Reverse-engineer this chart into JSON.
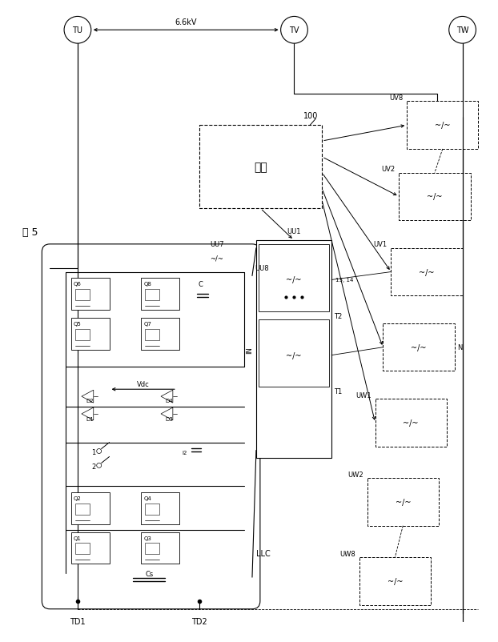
{
  "bg_color": "#ffffff",
  "line_color": "#000000",
  "fig_width": 6.22,
  "fig_height": 8.03,
  "dpi": 100,
  "title": "図 5",
  "label_TU": "TU",
  "label_TV": "TV",
  "label_TW": "TW",
  "label_voltage": "6.6kV",
  "label_LLC": "LLC",
  "label_control": "制御",
  "label_100": "100",
  "label_UU8": "UU8",
  "label_UU7": "UU7",
  "label_UU1": "UU1",
  "label_IN": "IN",
  "label_Vdc": "Vdc",
  "label_TD1": "TD1",
  "label_TD2": "TD2",
  "label_N": "N",
  "label_1314": "13, 14"
}
